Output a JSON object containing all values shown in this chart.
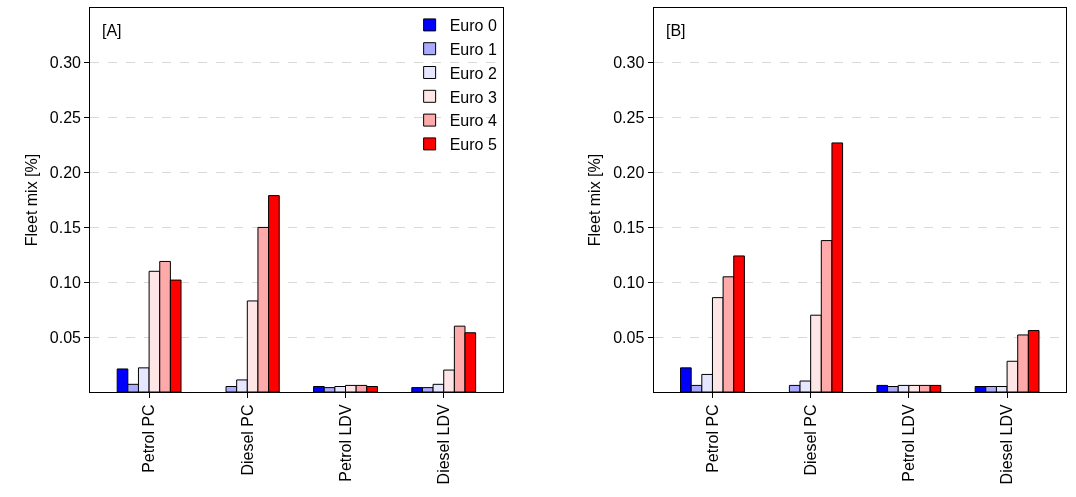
{
  "chart_data": [
    {
      "type": "bar",
      "title": "[A]",
      "ylabel": "Fleet mix [%]",
      "categories": [
        "Petrol PC",
        "Diesel PC",
        "Petrol LDV",
        "Diesel LDV"
      ],
      "series": [
        {
          "name": "Euro 0",
          "color": "#0000ff",
          "values": [
            0.021,
            null,
            0.005,
            0.004
          ]
        },
        {
          "name": "Euro 1",
          "color": "#aaaaff",
          "values": [
            0.007,
            0.005,
            0.004,
            0.004
          ]
        },
        {
          "name": "Euro 2",
          "color": "#e6e6ff",
          "values": [
            0.022,
            0.011,
            0.005,
            0.007
          ]
        },
        {
          "name": "Euro 3",
          "color": "#ffe6e6",
          "values": [
            0.11,
            0.083,
            0.006,
            0.02
          ]
        },
        {
          "name": "Euro 4",
          "color": "#ffaaaa",
          "values": [
            0.119,
            0.15,
            0.006,
            0.06
          ]
        },
        {
          "name": "Euro 5",
          "color": "#ff0000",
          "values": [
            0.102,
            0.179,
            0.005,
            0.054
          ]
        }
      ],
      "ylim": [
        0,
        0.35
      ],
      "yticks": [
        {
          "value": 0.05,
          "label": "0.05"
        },
        {
          "value": 0.1,
          "label": "0.10"
        },
        {
          "value": 0.15,
          "label": "0.15"
        },
        {
          "value": 0.2,
          "label": "0.20"
        },
        {
          "value": 0.25,
          "label": "0.25"
        },
        {
          "value": 0.3,
          "label": "0.30"
        }
      ],
      "grid": "y",
      "legend": "top right"
    },
    {
      "type": "bar",
      "title": "[B]",
      "ylabel": "Fleet mix [%]",
      "categories": [
        "Petrol PC",
        "Diesel PC",
        "Petrol LDV",
        "Diesel LDV"
      ],
      "series": [
        {
          "color": "#0000ff",
          "values": [
            0.022,
            null,
            0.006,
            0.005
          ]
        },
        {
          "color": "#aaaaff",
          "values": [
            0.006,
            0.006,
            0.005,
            0.005
          ]
        },
        {
          "color": "#e6e6ff",
          "values": [
            0.016,
            0.01,
            0.006,
            0.005
          ]
        },
        {
          "color": "#ffe6e6",
          "values": [
            0.086,
            0.07,
            0.006,
            0.028
          ]
        },
        {
          "color": "#ffaaaa",
          "values": [
            0.105,
            0.138,
            0.006,
            0.052
          ]
        },
        {
          "color": "#ff0000",
          "values": [
            0.124,
            0.227,
            0.006,
            0.056
          ]
        }
      ],
      "ylim": [
        0,
        0.35
      ],
      "yticks": [
        {
          "value": 0.05,
          "label": "0.05"
        },
        {
          "value": 0.1,
          "label": "0.10"
        },
        {
          "value": 0.15,
          "label": "0.15"
        },
        {
          "value": 0.2,
          "label": "0.20"
        },
        {
          "value": 0.25,
          "label": "0.25"
        },
        {
          "value": 0.3,
          "label": "0.30"
        }
      ],
      "grid": "y",
      "legend": false
    }
  ]
}
